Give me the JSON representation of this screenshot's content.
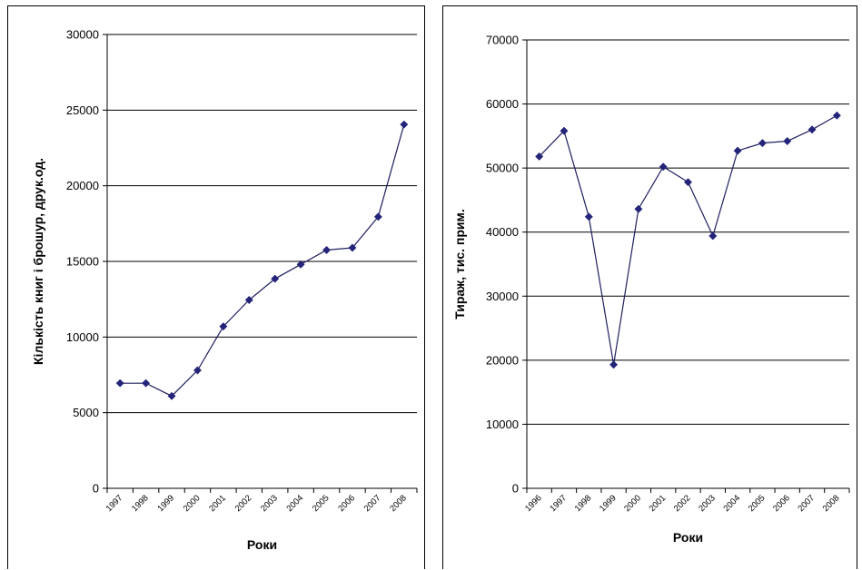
{
  "chart_data": [
    {
      "type": "line",
      "title": "",
      "xlabel": "Роки",
      "ylabel": "Кількість книг і брошур, друк.од.",
      "categories": [
        "1997",
        "1998",
        "1999",
        "2000",
        "2001",
        "2002",
        "2003",
        "2004",
        "2005",
        "2006",
        "2007",
        "2008"
      ],
      "series": [
        {
          "values": [
            6950,
            6950,
            6100,
            7800,
            10700,
            12450,
            13850,
            14800,
            15750,
            15900,
            17950,
            24050
          ]
        }
      ],
      "ylim": [
        0,
        30000
      ],
      "yticks": [
        "0",
        "5000",
        "10000",
        "15000",
        "20000",
        "25000",
        "30000"
      ],
      "grid": true,
      "colors": {
        "line": "#1f1f5f",
        "marker": "#24247a",
        "grid": "#000000"
      }
    },
    {
      "type": "line",
      "title": "",
      "xlabel": "Роки",
      "ylabel": "Тираж, тис. прим.",
      "categories": [
        "1996",
        "1997",
        "1998",
        "1999",
        "2000",
        "2001",
        "2002",
        "2003",
        "2004",
        "2005",
        "2006",
        "2007",
        "2008"
      ],
      "series": [
        {
          "values": [
            51800,
            55800,
            42400,
            19300,
            43600,
            50200,
            47800,
            39400,
            52700,
            53900,
            54200,
            56000,
            58200
          ]
        }
      ],
      "ylim": [
        0,
        70000
      ],
      "yticks": [
        "0",
        "10000",
        "20000",
        "30000",
        "40000",
        "50000",
        "60000",
        "70000"
      ],
      "grid": true,
      "colors": {
        "line": "#1f1f5f",
        "marker": "#24247a",
        "grid": "#000000"
      }
    }
  ]
}
